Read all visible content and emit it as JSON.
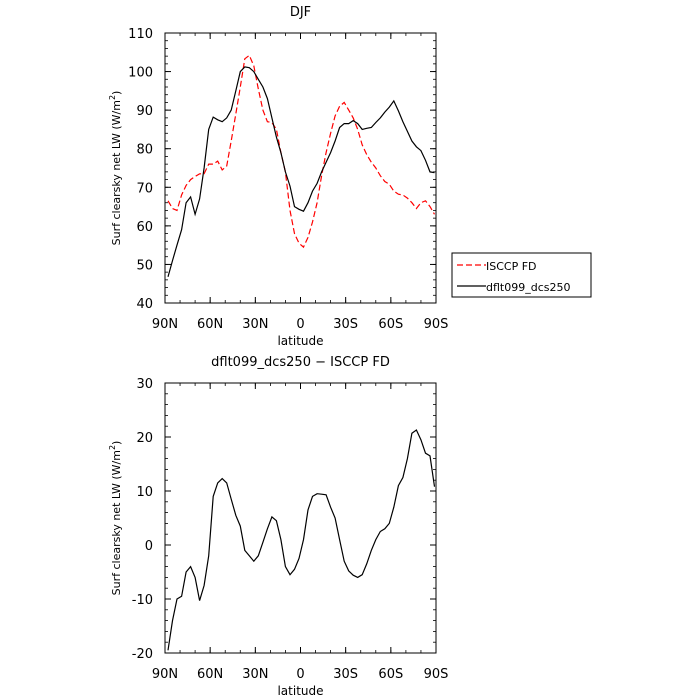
{
  "chart_data": [
    {
      "type": "line",
      "title": "DJF",
      "xlabel": "latitude",
      "ylabel": "Surf clearsky net LW (W/m²)",
      "xlim": [
        -90,
        90
      ],
      "ylim": [
        40,
        110
      ],
      "x_ticks": [
        -90,
        -60,
        -30,
        0,
        30,
        60,
        90
      ],
      "x_tick_labels": [
        "90N",
        "60N",
        "30N",
        "0",
        "30S",
        "60S",
        "90S"
      ],
      "y_ticks": [
        40,
        50,
        60,
        70,
        80,
        90,
        100,
        110
      ],
      "legend_position": "right",
      "series": [
        {
          "name": "ISCCP FD",
          "color": "#ff0000",
          "dash": "dashed",
          "x": [
            -88,
            -85,
            -82,
            -79,
            -76,
            -73,
            -70,
            -67,
            -64,
            -61,
            -58,
            -55,
            -52,
            -49,
            -46,
            -43,
            -40,
            -37,
            -34,
            -31,
            -28,
            -25,
            -22,
            -19,
            -16,
            -13,
            -10,
            -7,
            -4,
            -1,
            2,
            5,
            8,
            11,
            14,
            17,
            20,
            23,
            26,
            29,
            32,
            35,
            38,
            41,
            44,
            47,
            50,
            53,
            56,
            59,
            62,
            65,
            68,
            71,
            74,
            77,
            80,
            83,
            86,
            89
          ],
          "y": [
            66.5,
            64.5,
            64,
            68,
            70.5,
            72,
            72.8,
            73.5,
            73.5,
            76,
            76,
            76.8,
            74.5,
            75.5,
            82,
            89,
            96,
            103.3,
            104.2,
            101.5,
            95.5,
            90,
            87,
            86.8,
            85,
            79,
            74,
            64,
            58,
            55.5,
            54.5,
            57,
            61,
            66,
            73,
            79,
            84,
            88.5,
            91,
            92,
            90,
            88,
            85,
            81,
            78.5,
            76.5,
            75,
            73,
            71.5,
            70.8,
            69,
            68.2,
            68,
            67.2,
            66,
            64.5,
            66,
            66.5,
            65,
            63
          ]
        },
        {
          "name": "dflt099_dcs250",
          "color": "#000000",
          "dash": "solid",
          "x": [
            -88,
            -85,
            -82,
            -79,
            -76,
            -73,
            -70,
            -67,
            -64,
            -61,
            -58,
            -55,
            -52,
            -49,
            -46,
            -43,
            -40,
            -37,
            -34,
            -31,
            -28,
            -25,
            -22,
            -19,
            -16,
            -13,
            -10,
            -7,
            -4,
            -1,
            2,
            5,
            8,
            11,
            14,
            17,
            20,
            23,
            26,
            29,
            32,
            35,
            38,
            41,
            44,
            47,
            50,
            53,
            56,
            59,
            62,
            65,
            68,
            71,
            74,
            77,
            80,
            83,
            86,
            89
          ],
          "y": [
            46.8,
            51,
            55,
            59,
            66,
            67.5,
            63,
            67,
            75,
            85,
            88.2,
            87.5,
            87,
            88,
            90,
            95,
            100,
            101.2,
            101,
            100,
            98,
            96,
            93,
            88,
            83,
            79,
            74,
            70.3,
            65,
            64.3,
            63.8,
            66,
            69,
            71,
            74,
            76.5,
            79,
            82,
            85.5,
            86.5,
            86.5,
            87.3,
            86.5,
            85,
            85.3,
            85.5,
            86.8,
            88,
            89.5,
            90.8,
            92.4,
            89.8,
            87,
            84.5,
            82,
            80.5,
            79.5,
            77,
            74,
            73.8
          ]
        }
      ]
    },
    {
      "type": "line",
      "title": "dflt099_dcs250 − ISCCP FD",
      "xlabel": "latitude",
      "ylabel": "Surf clearsky net LW (W/m²)",
      "xlim": [
        -90,
        90
      ],
      "ylim": [
        -20,
        30
      ],
      "x_ticks": [
        -90,
        -60,
        -30,
        0,
        30,
        60,
        90
      ],
      "x_tick_labels": [
        "90N",
        "60N",
        "30N",
        "0",
        "30S",
        "60S",
        "90S"
      ],
      "y_ticks": [
        -20,
        -10,
        0,
        10,
        20,
        30
      ],
      "series": [
        {
          "color": "#000000",
          "dash": "solid",
          "x": [
            -88,
            -85,
            -82,
            -79,
            -76,
            -73,
            -70,
            -67,
            -64,
            -61,
            -58,
            -55,
            -52,
            -49,
            -46,
            -43,
            -40,
            -37,
            -34,
            -31,
            -28,
            -25,
            -22,
            -19,
            -16,
            -13,
            -10,
            -7,
            -4,
            -1,
            2,
            5,
            8,
            11,
            14,
            17,
            20,
            23,
            26,
            29,
            32,
            35,
            38,
            41,
            44,
            47,
            50,
            53,
            56,
            59,
            62,
            65,
            68,
            71,
            74,
            77,
            80,
            83,
            86,
            89
          ],
          "y": [
            -19.5,
            -14,
            -10,
            -9.5,
            -5,
            -4,
            -6,
            -10.3,
            -7.5,
            -2,
            9,
            11.5,
            12.3,
            11.5,
            8.5,
            5.5,
            3.5,
            -1,
            -2,
            -3,
            -2,
            0.5,
            3,
            5.2,
            4.5,
            1,
            -4,
            -5.5,
            -4.5,
            -2.5,
            1,
            6.5,
            9,
            9.5,
            9.4,
            9.3,
            7,
            5,
            1,
            -3,
            -4.8,
            -5.6,
            -6,
            -5.5,
            -3.5,
            -1,
            1,
            2.5,
            3,
            4,
            7,
            11,
            12.5,
            16,
            20.7,
            21.3,
            19.5,
            17,
            16.5,
            10.8
          ]
        }
      ]
    }
  ]
}
